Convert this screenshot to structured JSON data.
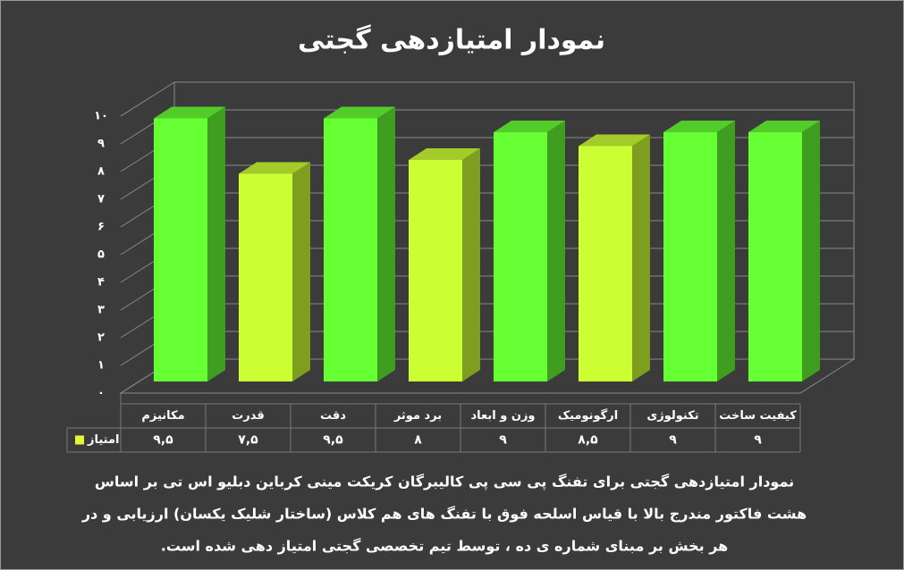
{
  "chart_data": {
    "type": "bar3d",
    "title": "نمودار امتیازدهی گجتی",
    "categories": [
      "مکانیزم",
      "قدرت",
      "دقت",
      "برد موثر",
      "وزن و ابعاد",
      "ارگونومیک",
      "تکنولوژی",
      "کیفیت ساخت"
    ],
    "series": [
      {
        "name": "امتیاز",
        "color": "#e5f53a",
        "values": [
          9.5,
          7.5,
          9.5,
          8,
          9,
          8.5,
          9,
          9
        ],
        "value_labels": [
          "۹,۵",
          "۷,۵",
          "۹,۵",
          "۸",
          "۹",
          "۸,۵",
          "۹",
          "۹"
        ],
        "bar_colors": [
          "#66ff33",
          "#ccff33",
          "#66ff33",
          "#ccff33",
          "#66ff33",
          "#ccff33",
          "#66ff33",
          "#66ff33"
        ]
      }
    ],
    "ylim": [
      0,
      10
    ],
    "yticks": [
      {
        "value": 0,
        "label": "۰"
      },
      {
        "value": 1,
        "label": "۱"
      },
      {
        "value": 2,
        "label": "۲"
      },
      {
        "value": 3,
        "label": "۳"
      },
      {
        "value": 4,
        "label": "۴"
      },
      {
        "value": 5,
        "label": "۵"
      },
      {
        "value": 6,
        "label": "۶"
      },
      {
        "value": 7,
        "label": "۷"
      },
      {
        "value": 8,
        "label": "۸"
      },
      {
        "value": 9,
        "label": "۹"
      },
      {
        "value": 10,
        "label": "۱۰"
      }
    ],
    "grid": true,
    "caption_lines": [
      "نمودار امتیازدهی گجتی برای تفنگ پی سی پی کالیبرگان کریکت مینی کرباین دبلیو اس تی بر اساس",
      "هشت فاکتور مندرج بالا با قیاس اسلحه فوق با تفنگ های هم کلاس (ساختار شلیک یکسان) ارزیابی و در",
      "هر بخش بر مبنای شماره ی ده ، توسط تیم تخصصی گجتی امتیاز دهی شده است."
    ]
  }
}
